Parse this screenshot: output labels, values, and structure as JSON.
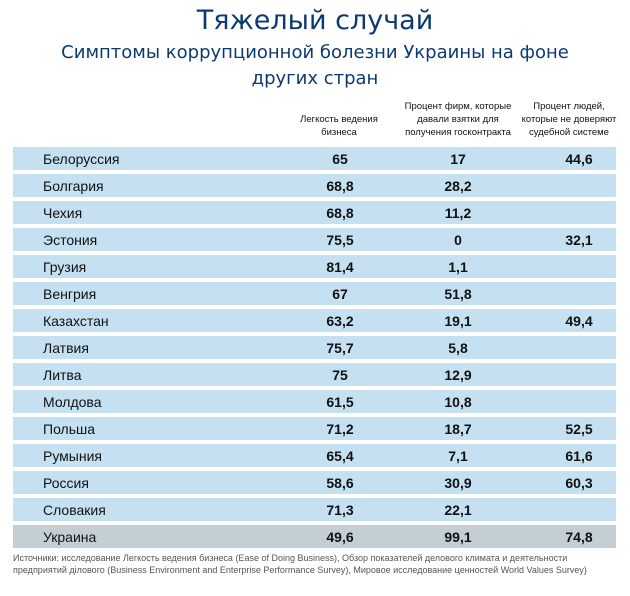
{
  "header": {
    "title": "Тяжелый случай",
    "subtitle_line1": "Симптомы коррупционной болезни Украины на фоне",
    "subtitle_line2": "других  стран"
  },
  "table": {
    "columns": [
      {
        "line1": "Легкость ведения",
        "line2": "бизнеса",
        "line3": ""
      },
      {
        "line1": "Процент фирм, которые",
        "line2": "давали взятки для",
        "line3": "получения госконтракта"
      },
      {
        "line1": "Процент людей,",
        "line2": "которые не доверяют",
        "line3": "судебной системе"
      }
    ],
    "rows": [
      {
        "country": "Белоруссия",
        "ease": "65",
        "bribes": "17",
        "distrust": "44,6"
      },
      {
        "country": "Болгария",
        "ease": "68,8",
        "bribes": "28,2",
        "distrust": ""
      },
      {
        "country": "Чехия",
        "ease": "68,8",
        "bribes": "11,2",
        "distrust": ""
      },
      {
        "country": "Эстония",
        "ease": "75,5",
        "bribes": "0",
        "distrust": "32,1"
      },
      {
        "country": "Грузия",
        "ease": "81,4",
        "bribes": "1,1",
        "distrust": ""
      },
      {
        "country": "Венгрия",
        "ease": "67",
        "bribes": "51,8",
        "distrust": ""
      },
      {
        "country": "Казахстан",
        "ease": "63,2",
        "bribes": "19,1",
        "distrust": "49,4"
      },
      {
        "country": "Латвия",
        "ease": "75,7",
        "bribes": "5,8",
        "distrust": ""
      },
      {
        "country": "Литва",
        "ease": "75",
        "bribes": "12,9",
        "distrust": ""
      },
      {
        "country": "Молдова",
        "ease": "61,5",
        "bribes": "10,8",
        "distrust": ""
      },
      {
        "country": "Польша",
        "ease": "71,2",
        "bribes": "18,7",
        "distrust": "52,5"
      },
      {
        "country": "Румыния",
        "ease": "65,4",
        "bribes": "7,1",
        "distrust": "61,6"
      },
      {
        "country": "Россия",
        "ease": "58,6",
        "bribes": "30,9",
        "distrust": "60,3"
      },
      {
        "country": "Словакия",
        "ease": "71,3",
        "bribes": "22,1",
        "distrust": ""
      },
      {
        "country": "Украина",
        "ease": "49,6",
        "bribes": "99,1",
        "distrust": "74,8"
      }
    ]
  },
  "colors": {
    "title": "#0d3a6e",
    "row_bg": "#c5e1f1",
    "highlight_row_bg": "#c4cfd5"
  },
  "source": "Источники: исследование Легкость ведения бизнеса (Ease of Doing Business), Обзор показателей делового климата и деятельности предприятий ділового (Business Environment and Enterprise Performance Survey), Мировое исследование ценностей World Values Survey)"
}
